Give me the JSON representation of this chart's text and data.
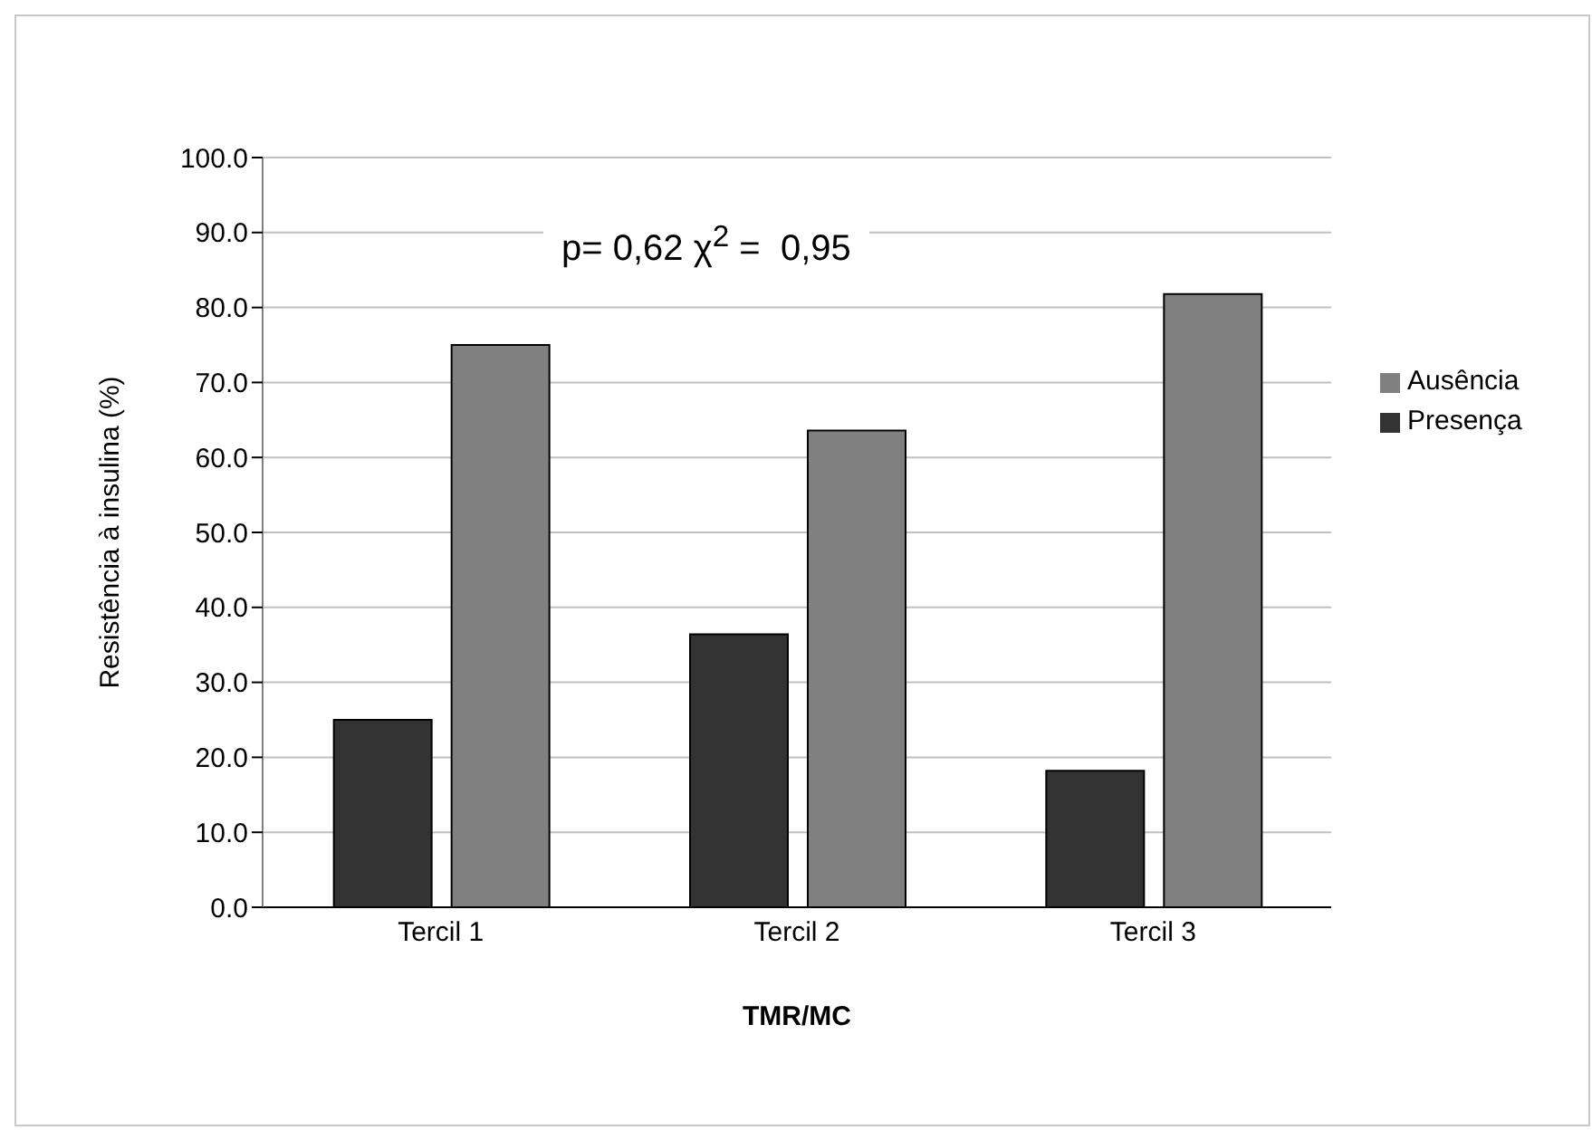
{
  "chart_data": {
    "type": "bar",
    "xlabel": "TMR/MC",
    "ylabel": "Resistência à insulina (%)",
    "categories": [
      "Tercil 1",
      "Tercil 2",
      "Tercil 3"
    ],
    "series": [
      {
        "name": "Presença",
        "color": "#333333",
        "values": [
          25.0,
          36.4,
          18.2
        ]
      },
      {
        "name": "Ausência",
        "color": "#808080",
        "values": [
          75.0,
          63.6,
          81.8
        ]
      }
    ],
    "ylim": [
      0,
      100
    ],
    "yticks": [
      {
        "value": 0,
        "label": "0.0"
      },
      {
        "value": 10,
        "label": "10.0"
      },
      {
        "value": 20,
        "label": "20.0"
      },
      {
        "value": 30,
        "label": "30.0"
      },
      {
        "value": 40,
        "label": "40.0"
      },
      {
        "value": 50,
        "label": "50.0"
      },
      {
        "value": 60,
        "label": "60.0"
      },
      {
        "value": 70,
        "label": "70.0"
      },
      {
        "value": 80,
        "label": "80.0"
      },
      {
        "value": 90,
        "label": "90.0"
      },
      {
        "value": 100,
        "label": "100.0"
      }
    ],
    "annotations": [
      "p= 0,62 χ$^{2}$ =  0,95"
    ],
    "grid": "y",
    "legend": "right"
  }
}
